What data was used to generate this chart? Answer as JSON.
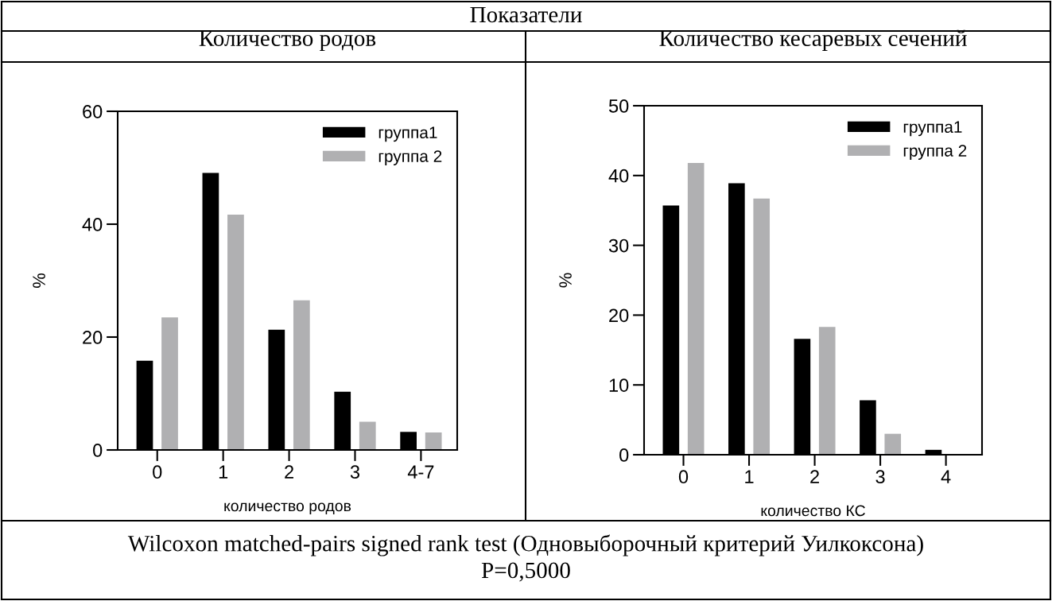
{
  "chart_data": [
    {
      "type": "other",
      "title": "Показатели",
      "annotations": [
        "Wilcoxon matched-pairs signed rank test (Одновыборочный критерий Уилкоксона)",
        "P=0,5000"
      ]
    },
    {
      "type": "bar",
      "title": "Количество родов",
      "xlabel": "количество родов",
      "ylabel": "%",
      "categories": [
        "0",
        "1",
        "2",
        "3",
        "4-7"
      ],
      "series": [
        {
          "name": "группа1",
          "color": "#000000",
          "values": [
            15.8,
            49.1,
            21.3,
            10.3,
            3.2
          ]
        },
        {
          "name": "группа 2",
          "color": "#b0b0b2",
          "values": [
            23.5,
            41.7,
            26.5,
            5.0,
            3.1
          ]
        }
      ],
      "ylim": [
        0,
        60
      ],
      "yticks": [
        0,
        20,
        40,
        60
      ],
      "legend": "top right"
    },
    {
      "type": "bar",
      "title": "Количество кесаревых сечений",
      "xlabel": "количество КС",
      "ylabel": "%",
      "categories": [
        "0",
        "1",
        "2",
        "3",
        "4"
      ],
      "series": [
        {
          "name": "группа1",
          "color": "#000000",
          "values": [
            35.7,
            38.9,
            16.6,
            7.8,
            0.7
          ]
        },
        {
          "name": "группа 2",
          "color": "#b0b0b2",
          "values": [
            41.8,
            36.7,
            18.3,
            3.0,
            0
          ]
        }
      ],
      "ylim": [
        0,
        50
      ],
      "yticks": [
        0,
        10,
        20,
        30,
        40,
        50
      ],
      "legend": "top right"
    }
  ]
}
